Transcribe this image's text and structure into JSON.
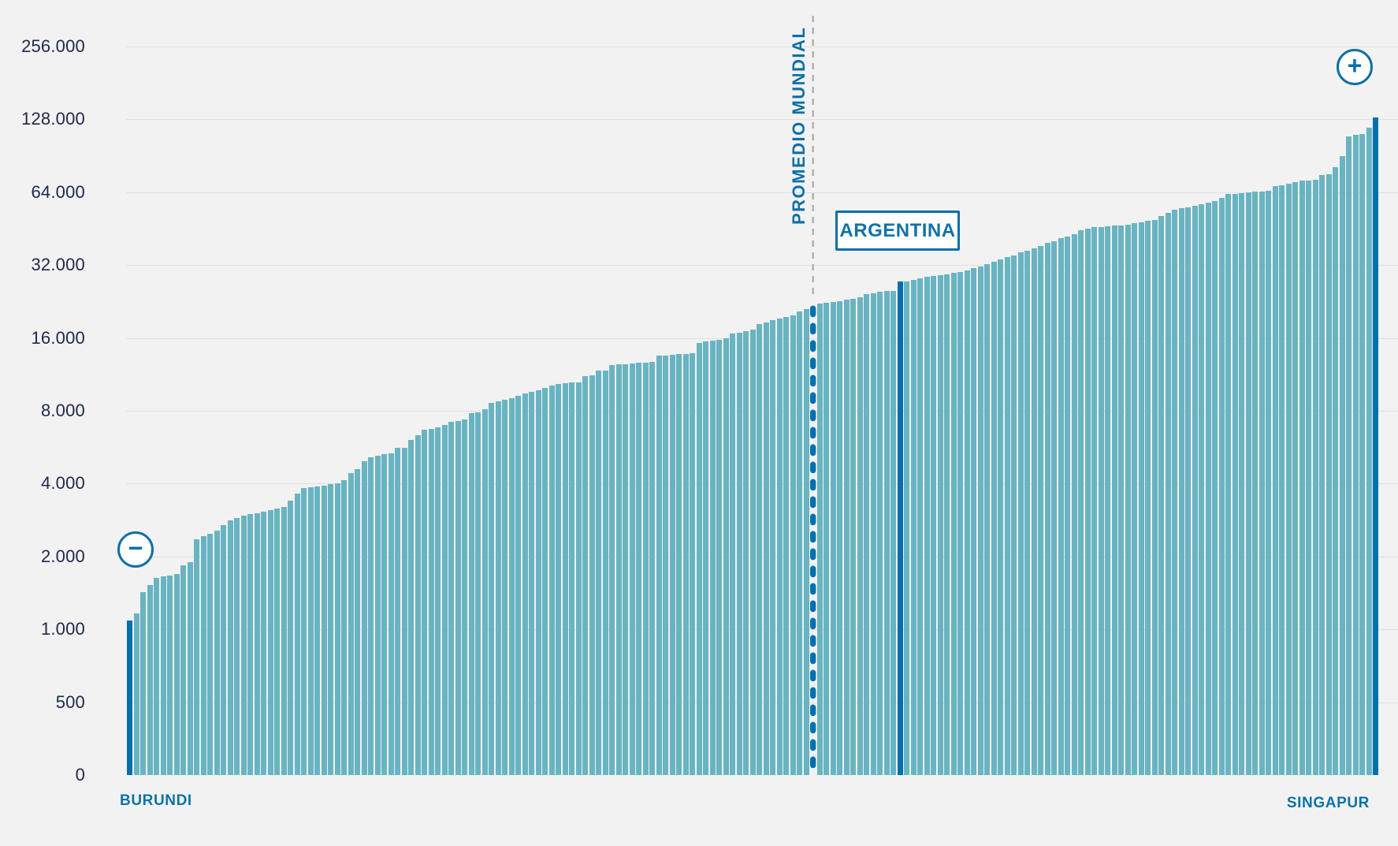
{
  "chart_data": {
    "type": "bar",
    "description": "Countries ranked from lowest to highest value, log2 y-scale",
    "y_axis": {
      "scale": "log2",
      "ticks": [
        {
          "label": "256.000",
          "value": 256000
        },
        {
          "label": "128.000",
          "value": 128000
        },
        {
          "label": "64.000",
          "value": 64000
        },
        {
          "label": "32.000",
          "value": 32000
        },
        {
          "label": "16.000",
          "value": 16000
        },
        {
          "label": "8.000",
          "value": 8000
        },
        {
          "label": "4.000",
          "value": 4000
        },
        {
          "label": "2.000",
          "value": 2000
        },
        {
          "label": "1.000",
          "value": 1000
        },
        {
          "label": "500",
          "value": 500
        },
        {
          "label": "0",
          "value": 0
        }
      ]
    },
    "x_axis": {
      "first_label": "BURUNDI",
      "last_label": "SINGAPUR"
    },
    "world_average": {
      "label": "PROMEDIO MUNDIAL",
      "slot_index": 102,
      "value": 22000
    },
    "highlight": {
      "label": "ARGENTINA",
      "index": 115,
      "value": 27300
    },
    "first": {
      "label": "BURUNDI",
      "index": 0,
      "value": 1090
    },
    "last": {
      "label": "SINGAPUR",
      "index": 186,
      "value": 130000
    },
    "colors": {
      "bar": "#69b4c2",
      "highlight_bar": "#0070ad",
      "label_blue": "#0d72a8",
      "tick_navy": "#20294c",
      "grid": "#e0e0e0",
      "dash_gray": "#a9a9a9",
      "background": "#f2f2f2"
    },
    "values": [
      1090,
      1160,
      1430,
      1530,
      1630,
      1650,
      1670,
      1700,
      1840,
      1900,
      2350,
      2420,
      2480,
      2550,
      2700,
      2830,
      2890,
      2940,
      2990,
      3020,
      3060,
      3100,
      3150,
      3200,
      3400,
      3650,
      3850,
      3860,
      3900,
      3930,
      3990,
      4010,
      4130,
      4440,
      4600,
      4950,
      5150,
      5200,
      5290,
      5350,
      5620,
      5640,
      6050,
      6330,
      6660,
      6760,
      6860,
      7000,
      7210,
      7260,
      7380,
      7830,
      7880,
      8150,
      8600,
      8750,
      8900,
      9050,
      9200,
      9450,
      9600,
      9700,
      9950,
      10150,
      10300,
      10400,
      10450,
      10480,
      11100,
      11250,
      11700,
      11750,
      12400,
      12450,
      12500,
      12550,
      12600,
      12650,
      12750,
      13500,
      13550,
      13600,
      13700,
      13750,
      13850,
      15240,
      15450,
      15600,
      15700,
      15950,
      16700,
      16850,
      17100,
      17350,
      18200,
      18500,
      18900,
      19200,
      19600,
      19900,
      20600,
      21000,
      null,
      22200,
      22300,
      22500,
      22700,
      23000,
      23200,
      23600,
      24200,
      24500,
      24800,
      25000,
      25100,
      27300,
      27400,
      27800,
      28300,
      28700,
      28900,
      29100,
      29400,
      29700,
      29900,
      30400,
      31000,
      31500,
      32300,
      33000,
      33900,
      34500,
      35200,
      36100,
      36800,
      37600,
      38500,
      39500,
      40300,
      41300,
      42000,
      43100,
      44700,
      45200,
      45800,
      46000,
      46300,
      46500,
      46800,
      47000,
      47600,
      48200,
      48800,
      49100,
      51000,
      52500,
      54000,
      54900,
      55500,
      56100,
      57100,
      58000,
      58700,
      60500,
      62800,
      63100,
      63500,
      63800,
      64300,
      64600,
      65100,
      67900,
      68400,
      69200,
      70600,
      71300,
      71800,
      72200,
      75500,
      75900,
      81500,
      90100,
      108900,
      110300,
      111700,
      118500,
      130000
    ]
  },
  "controls": {
    "zoom_out_glyph": "−",
    "zoom_in_glyph": "+"
  }
}
